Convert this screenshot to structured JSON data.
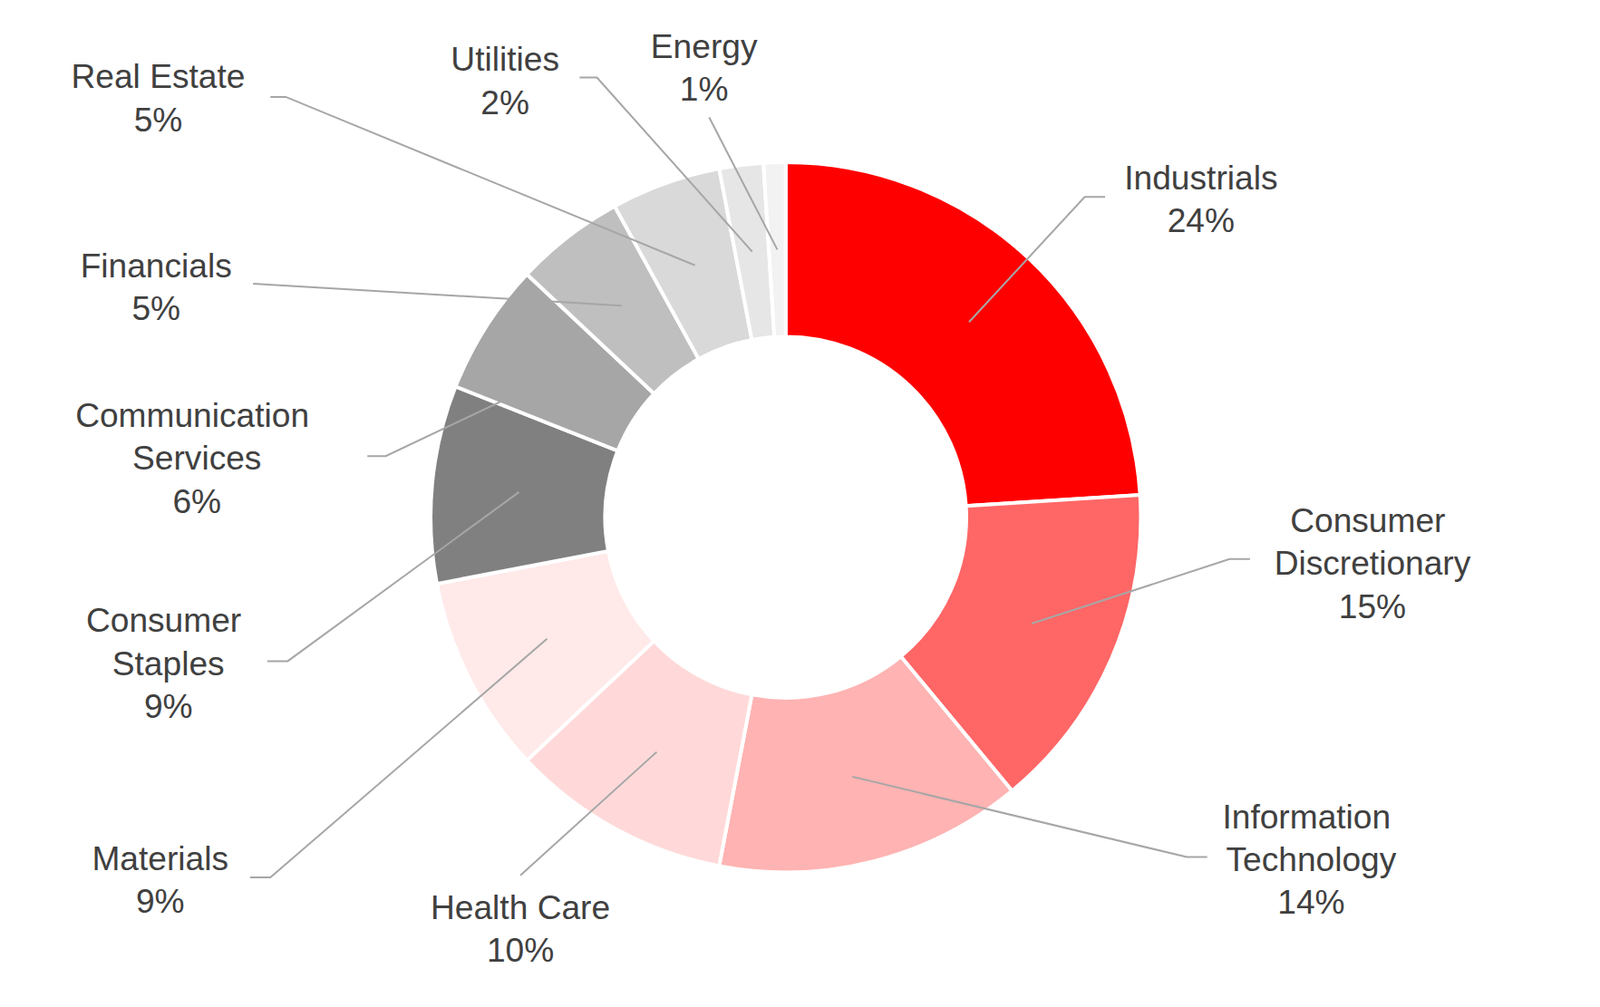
{
  "chart_data": {
    "type": "pie",
    "categories": [
      "Industrials",
      "Consumer Discretionary",
      "Information Technology",
      "Health Care",
      "Materials",
      "Consumer Staples",
      "Communication Services",
      "Financials",
      "Real Estate",
      "Utilities",
      "Energy"
    ],
    "values": [
      24,
      15,
      14,
      10,
      9,
      9,
      6,
      5,
      5,
      2,
      1
    ],
    "value_labels": [
      "24%",
      "15%",
      "14%",
      "10%",
      "9%",
      "9%",
      "6%",
      "5%",
      "5%",
      "2%",
      "1%"
    ],
    "colors": [
      "#ff0000",
      "#ff6666",
      "#ffb3b3",
      "#ffd9d9",
      "#ffe9e9",
      "#808080",
      "#a6a6a6",
      "#bfbfbf",
      "#d9d9d9",
      "#e6e6e6",
      "#f2f2f2"
    ],
    "data_labels": true
  }
}
